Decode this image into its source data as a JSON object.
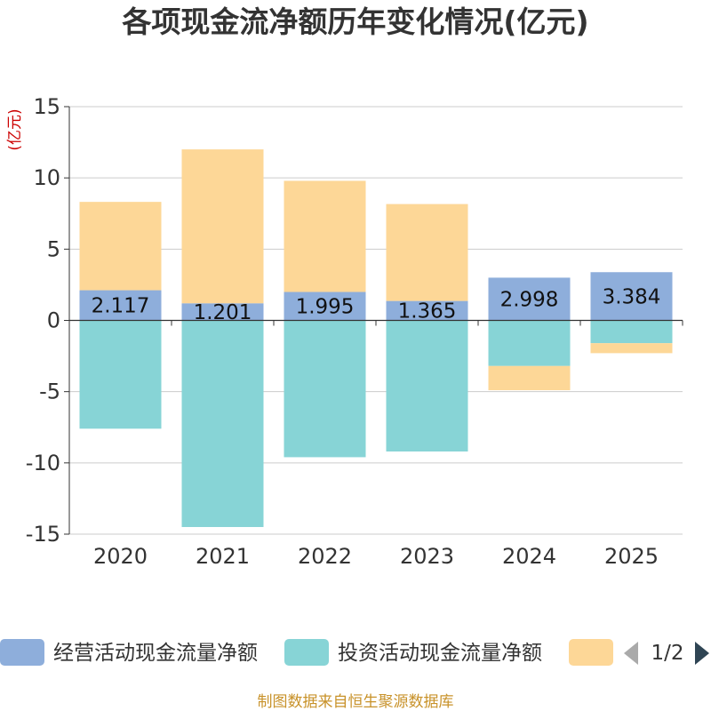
{
  "chart_data": {
    "type": "bar",
    "stacked": true,
    "title": "各项现金流净额历年变化情况(亿元)",
    "ylabel": "(亿元)",
    "xlabel": "",
    "categories": [
      "2020",
      "2021",
      "2022",
      "2023",
      "2024",
      "2025"
    ],
    "ylim": [
      -15,
      15
    ],
    "yticks": [
      15,
      10,
      5,
      0,
      -5,
      -10,
      -15
    ],
    "grid": true,
    "series": [
      {
        "name": "经营活动现金流量净额",
        "color": "#8eaedb",
        "values": [
          2.117,
          1.201,
          1.995,
          1.365,
          2.998,
          3.384
        ],
        "labels": [
          "2.117",
          "1.201",
          "1.995",
          "1.365",
          "2.998",
          "3.384"
        ]
      },
      {
        "name": "投资活动现金流量净额",
        "color": "#87d4d6",
        "values": [
          -7.6,
          -14.5,
          -9.6,
          -9.2,
          -3.2,
          -1.6
        ]
      },
      {
        "name": "",
        "color": "#fdd797",
        "values": [
          6.2,
          10.8,
          7.8,
          6.8,
          -1.7,
          -0.7
        ]
      }
    ],
    "legend": {
      "position": "bottom",
      "page": "1/2"
    }
  },
  "source": "制图数据来自恒生聚源数据库"
}
